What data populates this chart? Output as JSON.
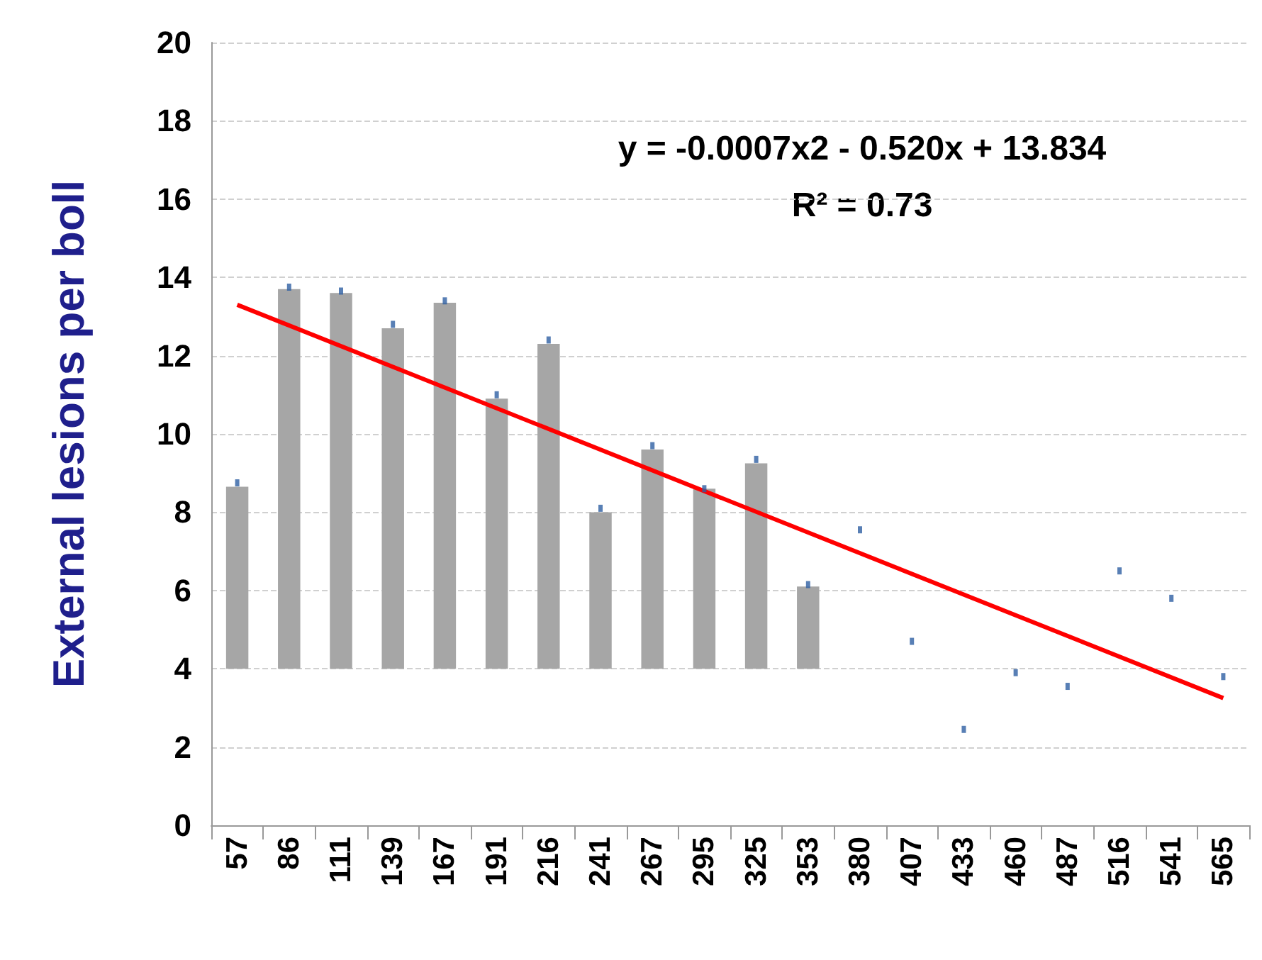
{
  "chart_data": {
    "type": "bar",
    "ylabel": "External lesions per boll",
    "annotations": [
      "y = -0.0007x2 - 0.520x + 13.834",
      "R² = 0.73"
    ],
    "categories": [
      "57",
      "86",
      "111",
      "139",
      "167",
      "191",
      "216",
      "241",
      "267",
      "295",
      "325",
      "353",
      "380",
      "407",
      "433",
      "460",
      "487",
      "516",
      "541",
      "565"
    ],
    "series": [
      {
        "color": "#a6a6a6",
        "base": [
          4,
          4,
          4,
          4,
          4,
          4,
          4,
          4,
          4,
          4,
          4,
          4,
          null,
          null,
          null,
          null,
          null,
          null,
          null,
          null
        ],
        "values": [
          4.65,
          9.7,
          9.6,
          8.7,
          9.35,
          6.9,
          8.3,
          4.0,
          5.6,
          4.6,
          5.25,
          2.1,
          null,
          null,
          null,
          null,
          null,
          null,
          null,
          null
        ]
      },
      {
        "type": "scatter",
        "color": "#2e5fa3",
        "marker": "square",
        "values": [
          8.75,
          13.75,
          13.65,
          12.8,
          13.4,
          11.0,
          12.4,
          8.1,
          9.7,
          8.6,
          9.35,
          6.15,
          7.55,
          4.7,
          2.45,
          3.9,
          3.55,
          6.5,
          5.8,
          3.8
        ]
      },
      {
        "type": "line",
        "color": "#ff0000",
        "marker": "none",
        "x": [
          "57",
          "565"
        ],
        "values": [
          13.3,
          3.25
        ]
      }
    ],
    "ylim": [
      0,
      20
    ],
    "yticks": [
      0,
      2,
      4,
      6,
      8,
      10,
      12,
      14,
      16,
      18,
      20
    ],
    "grid": "y"
  }
}
